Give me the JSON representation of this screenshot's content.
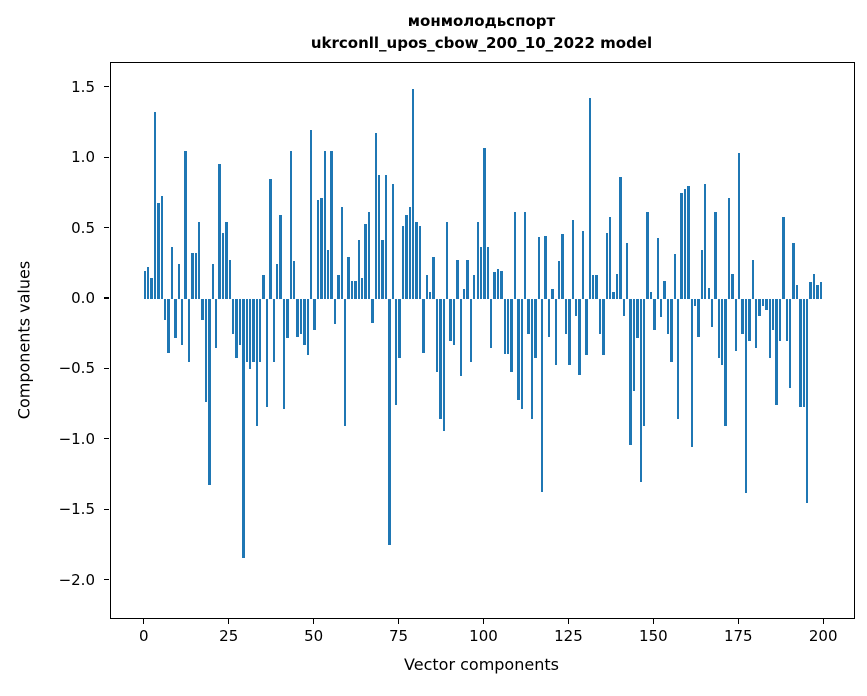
{
  "title": {
    "line1": "монмолодьспорт",
    "line2": "ukrconll_upos_cbow_200_10_2022 model"
  },
  "chart_data": {
    "type": "bar",
    "title": "монмолодьспорт\nukrconll_upos_cbow_200_10_2022 model",
    "xlabel": "Vector components",
    "ylabel": "Components values",
    "bar_color": "#1f77b4",
    "grid": false,
    "legend": "none",
    "n_components": 200,
    "x_description": "component index 0..199",
    "x_ticks": [
      0,
      25,
      50,
      75,
      100,
      125,
      150,
      175,
      200
    ],
    "x_tick_labels": [
      "0",
      "25",
      "50",
      "75",
      "100",
      "125",
      "150",
      "175",
      "200"
    ],
    "y_ticks": [
      1.5,
      1.0,
      0.5,
      0.0,
      -0.5,
      -1.0,
      -1.5,
      -2.0
    ],
    "y_tick_labels": [
      "1.5",
      "1.0",
      "0.5",
      "0.0",
      "−0.5",
      "−1.0",
      "−1.5",
      "−2.0"
    ],
    "ylim": [
      -2.27,
      1.68
    ],
    "xlim": [
      -10,
      209
    ],
    "values": [
      0.2,
      0.23,
      0.15,
      1.33,
      0.68,
      0.73,
      -0.15,
      -0.38,
      0.37,
      -0.28,
      0.25,
      -0.33,
      1.05,
      -0.45,
      0.33,
      0.33,
      0.55,
      -0.15,
      -0.73,
      -1.32,
      0.25,
      -0.35,
      0.96,
      0.47,
      0.55,
      0.28,
      -0.25,
      -0.42,
      -0.33,
      -1.84,
      -0.45,
      -0.5,
      -0.45,
      -0.9,
      -0.45,
      0.17,
      -0.77,
      0.85,
      -0.45,
      0.25,
      0.6,
      -0.78,
      -0.28,
      1.05,
      0.27,
      -0.27,
      -0.25,
      -0.33,
      -0.4,
      1.2,
      -0.22,
      0.7,
      0.72,
      1.05,
      0.35,
      1.05,
      -0.18,
      0.17,
      0.65,
      -0.9,
      0.3,
      0.13,
      0.13,
      0.42,
      0.15,
      0.53,
      0.62,
      -0.17,
      1.18,
      0.88,
      0.42,
      0.88,
      -1.75,
      0.82,
      -0.75,
      -0.42,
      0.52,
      0.6,
      0.65,
      1.49,
      0.55,
      0.52,
      -0.38,
      0.17,
      0.05,
      0.3,
      -0.52,
      -0.85,
      -0.94,
      0.55,
      -0.3,
      -0.33,
      0.28,
      -0.55,
      0.07,
      0.28,
      -0.45,
      0.17,
      0.55,
      0.37,
      1.07,
      0.37,
      -0.35,
      0.19,
      0.21,
      0.2,
      -0.39,
      -0.39,
      -0.52,
      0.62,
      -0.72,
      -0.78,
      0.62,
      -0.25,
      -0.85,
      -0.42,
      0.44,
      -1.37,
      0.45,
      -0.27,
      0.07,
      -0.47,
      0.27,
      0.46,
      -0.25,
      -0.47,
      0.56,
      -0.12,
      -0.54,
      0.48,
      -0.4,
      1.43,
      0.17,
      0.17,
      -0.25,
      -0.4,
      0.47,
      0.58,
      0.05,
      0.18,
      0.87,
      -0.12,
      0.4,
      -1.04,
      -0.65,
      -0.28,
      -1.3,
      -0.9,
      0.62,
      0.05,
      -0.22,
      0.43,
      -0.13,
      0.13,
      -0.25,
      -0.45,
      0.32,
      -0.85,
      0.75,
      0.78,
      0.8,
      -1.05,
      -0.05,
      -0.27,
      0.35,
      0.82,
      0.08,
      -0.2,
      0.62,
      -0.42,
      -0.47,
      -0.9,
      0.72,
      0.18,
      -0.37,
      1.04,
      -0.25,
      -1.38,
      -0.3,
      0.28,
      -0.35,
      -0.12,
      -0.05,
      -0.08,
      -0.42,
      -0.22,
      -0.75,
      -0.3,
      0.58,
      -0.3,
      -0.63,
      0.4,
      0.1,
      -0.77,
      -0.77,
      -1.45,
      0.12,
      0.18,
      0.1,
      0.12
    ]
  }
}
